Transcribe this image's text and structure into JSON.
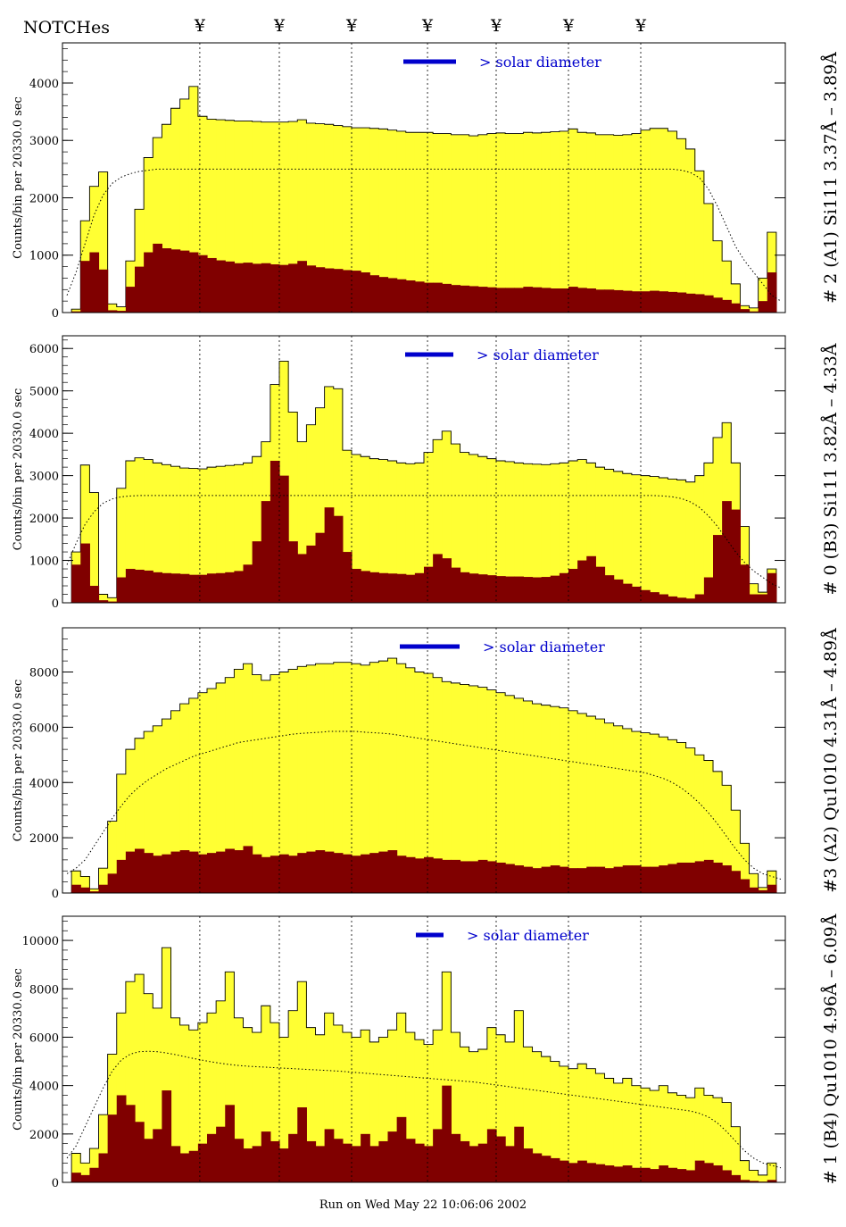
{
  "header": {
    "notches_label": "NOTCHes",
    "notch_symbol": "¥",
    "notch_positions": [
      0.19,
      0.3,
      0.4,
      0.505,
      0.6,
      0.7,
      0.8
    ]
  },
  "footer": {
    "run_text": "Run on Wed May 22 10:06:06 2002"
  },
  "colors": {
    "fill_total": "#ffff33",
    "fill_sub": "#800000",
    "outline": "#000000",
    "marker": "#0000cc",
    "label_blue": "#0000cc"
  },
  "chart_data": [
    {
      "type": "area",
      "ylabel": "Counts/bin per  20330.0 sec",
      "right_label": "# 2 (A1) Si111  3.37Å – 3.89Å",
      "annotation": "> solar diameter",
      "ylim": [
        0,
        4700
      ],
      "yticks": [
        0,
        1000,
        2000,
        3000,
        4000
      ],
      "series": [
        {
          "role": "total",
          "values": [
            0,
            60,
            1600,
            2200,
            2450,
            150,
            100,
            900,
            1800,
            2700,
            3050,
            3280,
            3560,
            3720,
            3940,
            3420,
            3370,
            3360,
            3350,
            3340,
            3340,
            3330,
            3320,
            3320,
            3320,
            3330,
            3360,
            3300,
            3290,
            3280,
            3260,
            3240,
            3220,
            3220,
            3210,
            3200,
            3180,
            3160,
            3140,
            3140,
            3140,
            3120,
            3120,
            3100,
            3100,
            3080,
            3100,
            3120,
            3130,
            3120,
            3120,
            3140,
            3130,
            3140,
            3150,
            3160,
            3200,
            3140,
            3130,
            3100,
            3100,
            3090,
            3100,
            3120,
            3180,
            3210,
            3210,
            3160,
            3030,
            2850,
            2470,
            1900,
            1250,
            900,
            500,
            120,
            80,
            600,
            1400,
            0
          ]
        },
        {
          "role": "sub",
          "values": [
            0,
            20,
            900,
            1050,
            750,
            40,
            30,
            450,
            800,
            1050,
            1200,
            1120,
            1100,
            1080,
            1050,
            1000,
            950,
            910,
            890,
            860,
            870,
            850,
            860,
            840,
            830,
            850,
            900,
            820,
            790,
            770,
            760,
            740,
            730,
            700,
            650,
            620,
            600,
            580,
            560,
            540,
            520,
            520,
            500,
            480,
            470,
            460,
            450,
            440,
            430,
            430,
            430,
            450,
            440,
            430,
            420,
            420,
            450,
            430,
            420,
            400,
            400,
            390,
            380,
            370,
            370,
            380,
            370,
            360,
            350,
            330,
            320,
            300,
            260,
            220,
            160,
            60,
            20,
            200,
            700,
            0
          ]
        },
        {
          "role": "model",
          "values": [
            300,
            700,
            1200,
            1700,
            2050,
            2250,
            2360,
            2420,
            2460,
            2480,
            2500,
            2500,
            2500,
            2500,
            2500,
            2500,
            2500,
            2500,
            2500,
            2500,
            2500,
            2500,
            2500,
            2500,
            2500,
            2500,
            2500,
            2500,
            2500,
            2500,
            2500,
            2500,
            2500,
            2500,
            2500,
            2500,
            2500,
            2500,
            2500,
            2500,
            2500,
            2500,
            2500,
            2500,
            2500,
            2500,
            2500,
            2500,
            2500,
            2500,
            2500,
            2500,
            2500,
            2500,
            2500,
            2500,
            2500,
            2500,
            2500,
            2500,
            2500,
            2500,
            2500,
            2500,
            2500,
            2500,
            2500,
            2500,
            2480,
            2440,
            2350,
            2150,
            1850,
            1500,
            1150,
            900,
            700,
            500,
            300,
            200
          ]
        }
      ]
    },
    {
      "type": "area",
      "ylabel": "Counts/bin per  20330.0 sec",
      "right_label": "# 0 (B3) Si111  3.82Å – 4.33Å",
      "annotation": "> solar diameter",
      "ylim": [
        0,
        6300
      ],
      "yticks": [
        0,
        1000,
        2000,
        3000,
        4000,
        5000,
        6000
      ],
      "series": [
        {
          "role": "total",
          "values": [
            0,
            1200,
            3250,
            2600,
            200,
            120,
            2700,
            3350,
            3420,
            3380,
            3300,
            3260,
            3220,
            3180,
            3170,
            3160,
            3200,
            3220,
            3240,
            3260,
            3300,
            3450,
            3800,
            5150,
            5700,
            4500,
            3800,
            4200,
            4600,
            5100,
            5050,
            3600,
            3500,
            3450,
            3400,
            3380,
            3350,
            3300,
            3280,
            3300,
            3550,
            3850,
            4050,
            3750,
            3550,
            3500,
            3450,
            3400,
            3350,
            3330,
            3300,
            3280,
            3270,
            3260,
            3280,
            3300,
            3350,
            3380,
            3300,
            3200,
            3150,
            3100,
            3050,
            3020,
            3000,
            2980,
            2950,
            2920,
            2900,
            2850,
            3000,
            3300,
            3900,
            4250,
            3300,
            1800,
            450,
            250,
            800,
            0
          ]
        },
        {
          "role": "sub",
          "values": [
            0,
            900,
            1400,
            400,
            60,
            30,
            600,
            800,
            780,
            760,
            720,
            700,
            690,
            680,
            660,
            660,
            690,
            700,
            720,
            750,
            900,
            1450,
            2400,
            3350,
            3000,
            1450,
            1150,
            1350,
            1650,
            2250,
            2050,
            1200,
            800,
            750,
            720,
            700,
            690,
            680,
            660,
            700,
            850,
            1150,
            1050,
            830,
            720,
            690,
            670,
            650,
            630,
            620,
            620,
            610,
            600,
            610,
            640,
            700,
            800,
            1000,
            1100,
            850,
            650,
            550,
            450,
            380,
            300,
            250,
            200,
            150,
            120,
            100,
            200,
            600,
            1600,
            2400,
            2200,
            900,
            200,
            200,
            700,
            0
          ]
        },
        {
          "role": "model",
          "values": [
            900,
            1400,
            1850,
            2150,
            2350,
            2450,
            2500,
            2520,
            2530,
            2530,
            2530,
            2530,
            2530,
            2530,
            2530,
            2530,
            2530,
            2530,
            2530,
            2530,
            2530,
            2530,
            2530,
            2530,
            2530,
            2530,
            2530,
            2530,
            2530,
            2530,
            2530,
            2530,
            2530,
            2530,
            2530,
            2530,
            2530,
            2530,
            2530,
            2530,
            2530,
            2530,
            2530,
            2530,
            2530,
            2530,
            2530,
            2530,
            2530,
            2530,
            2530,
            2530,
            2530,
            2530,
            2530,
            2530,
            2530,
            2530,
            2530,
            2530,
            2530,
            2530,
            2530,
            2530,
            2530,
            2530,
            2520,
            2500,
            2460,
            2380,
            2250,
            2050,
            1800,
            1500,
            1200,
            950,
            750,
            600,
            450,
            350
          ]
        }
      ]
    },
    {
      "type": "area",
      "ylabel": "Counts/bin per  20330.0 sec",
      "right_label": "#3 (A2) Qu1010  4.31Å – 4.89Å",
      "annotation": "> solar diameter",
      "ylim": [
        0,
        9600
      ],
      "yticks": [
        0,
        2000,
        4000,
        6000,
        8000
      ],
      "series": [
        {
          "role": "total",
          "values": [
            0,
            800,
            600,
            150,
            900,
            2600,
            4300,
            5200,
            5600,
            5850,
            6050,
            6300,
            6600,
            6850,
            7050,
            7250,
            7400,
            7600,
            7800,
            8100,
            8300,
            7900,
            7700,
            7900,
            8000,
            8100,
            8200,
            8250,
            8300,
            8300,
            8350,
            8350,
            8300,
            8250,
            8350,
            8400,
            8500,
            8300,
            8150,
            8000,
            7950,
            7800,
            7650,
            7600,
            7550,
            7500,
            7450,
            7350,
            7250,
            7150,
            7050,
            6950,
            6850,
            6800,
            6750,
            6700,
            6600,
            6500,
            6400,
            6300,
            6150,
            6050,
            5950,
            5850,
            5800,
            5750,
            5650,
            5550,
            5450,
            5250,
            5000,
            4800,
            4400,
            3900,
            3000,
            1800,
            700,
            200,
            800,
            0
          ]
        },
        {
          "role": "sub",
          "values": [
            0,
            300,
            200,
            60,
            300,
            700,
            1200,
            1500,
            1600,
            1450,
            1350,
            1400,
            1500,
            1550,
            1500,
            1400,
            1450,
            1500,
            1600,
            1550,
            1700,
            1400,
            1300,
            1350,
            1400,
            1350,
            1450,
            1500,
            1550,
            1500,
            1450,
            1400,
            1350,
            1400,
            1450,
            1500,
            1550,
            1350,
            1300,
            1250,
            1300,
            1250,
            1200,
            1200,
            1150,
            1150,
            1200,
            1150,
            1100,
            1050,
            1000,
            950,
            900,
            950,
            1000,
            950,
            900,
            900,
            950,
            950,
            900,
            950,
            1000,
            1000,
            950,
            950,
            1000,
            1050,
            1100,
            1100,
            1150,
            1200,
            1100,
            1000,
            800,
            500,
            200,
            100,
            300,
            0
          ]
        },
        {
          "role": "model",
          "values": [
            700,
            900,
            1200,
            1700,
            2200,
            2700,
            3150,
            3550,
            3850,
            4100,
            4300,
            4500,
            4650,
            4800,
            4950,
            5050,
            5150,
            5250,
            5350,
            5450,
            5500,
            5550,
            5600,
            5650,
            5700,
            5750,
            5780,
            5800,
            5820,
            5850,
            5850,
            5850,
            5850,
            5820,
            5800,
            5780,
            5750,
            5700,
            5650,
            5600,
            5550,
            5500,
            5450,
            5400,
            5350,
            5300,
            5250,
            5200,
            5150,
            5100,
            5050,
            5000,
            4950,
            4900,
            4850,
            4800,
            4750,
            4700,
            4650,
            4600,
            4550,
            4500,
            4450,
            4400,
            4350,
            4250,
            4150,
            4000,
            3800,
            3550,
            3250,
            2900,
            2500,
            2050,
            1600,
            1200,
            900,
            700,
            600,
            500
          ]
        }
      ]
    },
    {
      "type": "area",
      "ylabel": "Counts/bin per  20330.0 sec",
      "right_label": "# 1 (B4) Qu1010 4.96Å – 6.09Å",
      "annotation": "> solar diameter",
      "ylim": [
        0,
        11000
      ],
      "yticks": [
        0,
        2000,
        4000,
        6000,
        8000,
        10000
      ],
      "series": [
        {
          "role": "total",
          "values": [
            0,
            1200,
            800,
            1400,
            2800,
            5300,
            7000,
            8300,
            8600,
            7800,
            7200,
            9700,
            6800,
            6500,
            6300,
            6600,
            7000,
            7500,
            8700,
            6800,
            6400,
            6200,
            7300,
            6600,
            6000,
            7100,
            8300,
            6400,
            6100,
            7000,
            6500,
            6200,
            6000,
            6300,
            5800,
            6000,
            6300,
            7000,
            6200,
            5900,
            5700,
            6300,
            8700,
            6200,
            5600,
            5400,
            5500,
            6400,
            6100,
            5800,
            7100,
            5600,
            5400,
            5200,
            5000,
            4800,
            4700,
            4900,
            4700,
            4500,
            4300,
            4100,
            4300,
            4000,
            3900,
            3800,
            4000,
            3700,
            3600,
            3500,
            3900,
            3600,
            3500,
            3300,
            2300,
            900,
            500,
            300,
            800,
            0
          ]
        },
        {
          "role": "sub",
          "values": [
            0,
            400,
            300,
            600,
            1200,
            2800,
            3600,
            3200,
            2500,
            1800,
            2200,
            3800,
            1500,
            1200,
            1300,
            1600,
            2000,
            2300,
            3200,
            1800,
            1400,
            1500,
            2100,
            1700,
            1400,
            2000,
            3100,
            1700,
            1500,
            2200,
            1800,
            1600,
            1500,
            2000,
            1500,
            1700,
            2100,
            2700,
            1800,
            1600,
            1500,
            2200,
            4000,
            2000,
            1700,
            1500,
            1600,
            2200,
            1900,
            1500,
            2300,
            1400,
            1200,
            1100,
            1000,
            900,
            800,
            900,
            800,
            750,
            700,
            650,
            700,
            600,
            600,
            550,
            700,
            600,
            550,
            500,
            900,
            800,
            700,
            500,
            300,
            100,
            60,
            30,
            100,
            0
          ]
        },
        {
          "role": "model",
          "values": [
            1000,
            1500,
            2300,
            3100,
            3900,
            4600,
            5050,
            5300,
            5400,
            5420,
            5400,
            5350,
            5280,
            5200,
            5120,
            5050,
            4980,
            4920,
            4870,
            4830,
            4800,
            4780,
            4760,
            4740,
            4720,
            4700,
            4680,
            4660,
            4640,
            4620,
            4600,
            4570,
            4540,
            4510,
            4480,
            4450,
            4420,
            4390,
            4360,
            4330,
            4300,
            4270,
            4240,
            4210,
            4180,
            4150,
            4100,
            4050,
            4000,
            3950,
            3900,
            3850,
            3800,
            3750,
            3700,
            3650,
            3600,
            3550,
            3500,
            3450,
            3400,
            3350,
            3300,
            3250,
            3200,
            3150,
            3100,
            3050,
            3000,
            2950,
            2850,
            2700,
            2450,
            2100,
            1700,
            1300,
            1000,
            800,
            700,
            600
          ]
        }
      ]
    }
  ]
}
